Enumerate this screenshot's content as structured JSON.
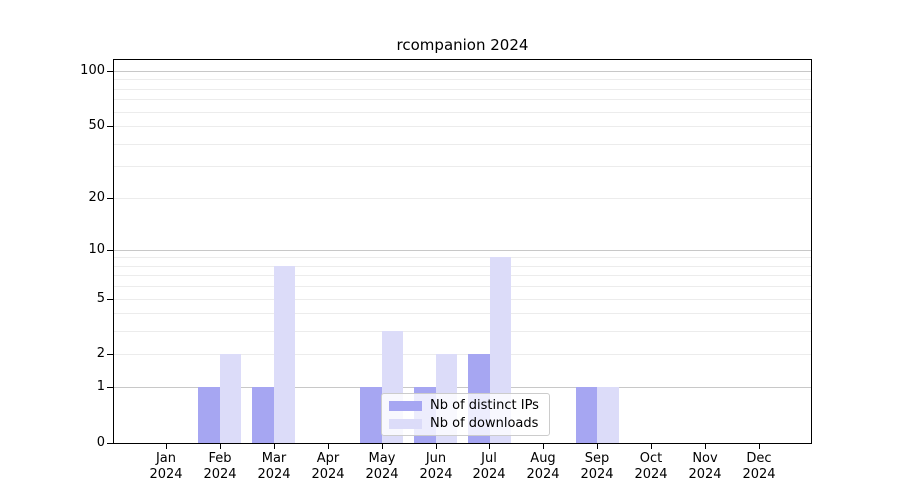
{
  "chart_data": {
    "type": "bar",
    "title": "rcompanion 2024",
    "months": [
      "Jan",
      "Feb",
      "Mar",
      "Apr",
      "May",
      "Jun",
      "Jul",
      "Aug",
      "Sep",
      "Oct",
      "Nov",
      "Dec"
    ],
    "year_label": "2024",
    "series": [
      {
        "name": "Nb of distinct IPs",
        "color": "#a6a6f2",
        "values": [
          0,
          1,
          1,
          0,
          1,
          1,
          2,
          0,
          1,
          0,
          0,
          0
        ]
      },
      {
        "name": "Nb of downloads",
        "color": "#dcdcf9",
        "values": [
          0,
          2,
          8,
          0,
          3,
          2,
          9,
          0,
          1,
          0,
          0,
          0
        ]
      }
    ],
    "yscale": "log1p",
    "yticks": [
      0,
      1,
      2,
      5,
      10,
      20,
      50,
      100
    ],
    "ylim": [
      0,
      115
    ],
    "grid": {
      "major": [
        1,
        10,
        100
      ],
      "minor": [
        2,
        3,
        4,
        5,
        6,
        7,
        8,
        9,
        20,
        30,
        40,
        50,
        60,
        70,
        80,
        90
      ]
    },
    "legend_position": "lower center",
    "xlabel": "",
    "ylabel": ""
  },
  "colors": {
    "grid_major": "#c8c8c8",
    "grid_minor": "#ececec",
    "axis": "#000000",
    "legend_border": "#cccccc",
    "background": "#ffffff"
  }
}
